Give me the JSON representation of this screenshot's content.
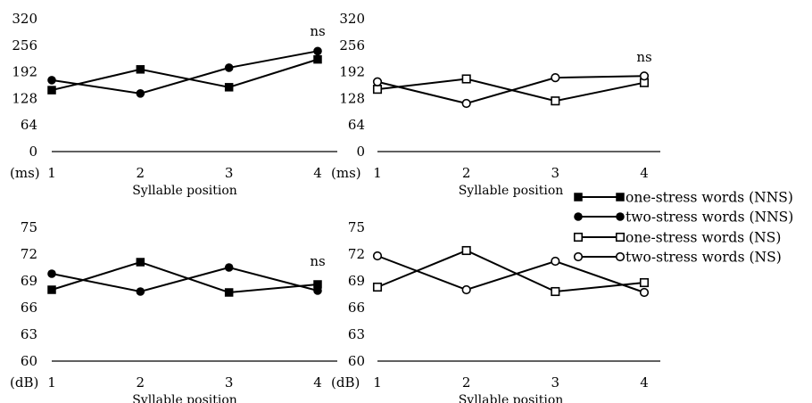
{
  "chart_data": [
    {
      "type": "line",
      "panel": "top-left",
      "unit_label": "(ms)",
      "xlabel": "Syllable position",
      "x": [
        1,
        2,
        3,
        4
      ],
      "ylim": [
        0,
        320
      ],
      "yticks": [
        0,
        64,
        128,
        192,
        256,
        320
      ],
      "grid": false,
      "annotation": {
        "text": "ns",
        "x": 4
      },
      "series": [
        {
          "name": "one-stress words (NNS)",
          "marker": "filled-square",
          "values": [
            148,
            198,
            155,
            222
          ]
        },
        {
          "name": "two-stress words (NNS)",
          "marker": "filled-circle",
          "values": [
            172,
            140,
            202,
            242
          ]
        }
      ]
    },
    {
      "type": "line",
      "panel": "top-right",
      "unit_label": "(ms)",
      "xlabel": "Syllable position",
      "x": [
        1,
        2,
        3,
        4
      ],
      "ylim": [
        0,
        320
      ],
      "yticks": [
        0,
        64,
        128,
        192,
        256,
        320
      ],
      "grid": false,
      "annotation": {
        "text": "ns",
        "x": 4
      },
      "series": [
        {
          "name": "one-stress words (NS)",
          "marker": "open-square",
          "values": [
            150,
            175,
            122,
            166
          ]
        },
        {
          "name": "two-stress words (NS)",
          "marker": "open-circle",
          "values": [
            168,
            116,
            178,
            182
          ]
        }
      ]
    },
    {
      "type": "line",
      "panel": "bottom-left",
      "unit_label": "(dB)",
      "xlabel": "Syllable position",
      "x": [
        1,
        2,
        3,
        4
      ],
      "ylim": [
        60,
        75
      ],
      "yticks": [
        60,
        63,
        66,
        69,
        72,
        75
      ],
      "grid": false,
      "annotation": {
        "text": "ns",
        "x": 4
      },
      "series": [
        {
          "name": "one-stress words (NNS)",
          "marker": "filled-square",
          "values": [
            68.0,
            71.1,
            67.7,
            68.6
          ]
        },
        {
          "name": "two-stress words (NNS)",
          "marker": "filled-circle",
          "values": [
            69.8,
            67.8,
            70.5,
            67.9
          ]
        }
      ]
    },
    {
      "type": "line",
      "panel": "bottom-right",
      "unit_label": "(dB)",
      "xlabel": "Syllable position",
      "x": [
        1,
        2,
        3,
        4
      ],
      "ylim": [
        60,
        75
      ],
      "yticks": [
        60,
        63,
        66,
        69,
        72,
        75
      ],
      "grid": false,
      "series": [
        {
          "name": "one-stress words (NS)",
          "marker": "open-square",
          "values": [
            68.3,
            72.4,
            67.8,
            68.8
          ]
        },
        {
          "name": "two-stress words (NS)",
          "marker": "open-circle",
          "values": [
            71.8,
            68.0,
            71.2,
            67.7
          ]
        }
      ]
    }
  ],
  "legend": {
    "placement": "right",
    "items": [
      {
        "label": "one-stress words (NNS)",
        "marker": "filled-square"
      },
      {
        "label": "two-stress words (NNS)",
        "marker": "filled-circle"
      },
      {
        "label": "one-stress words (NS)",
        "marker": "open-square"
      },
      {
        "label": "two-stress words (NS)",
        "marker": "open-circle"
      }
    ]
  },
  "colors": {
    "line": "#000000",
    "marker_fill": "#000000",
    "open_fill": "#ffffff",
    "background": "#ffffff"
  }
}
